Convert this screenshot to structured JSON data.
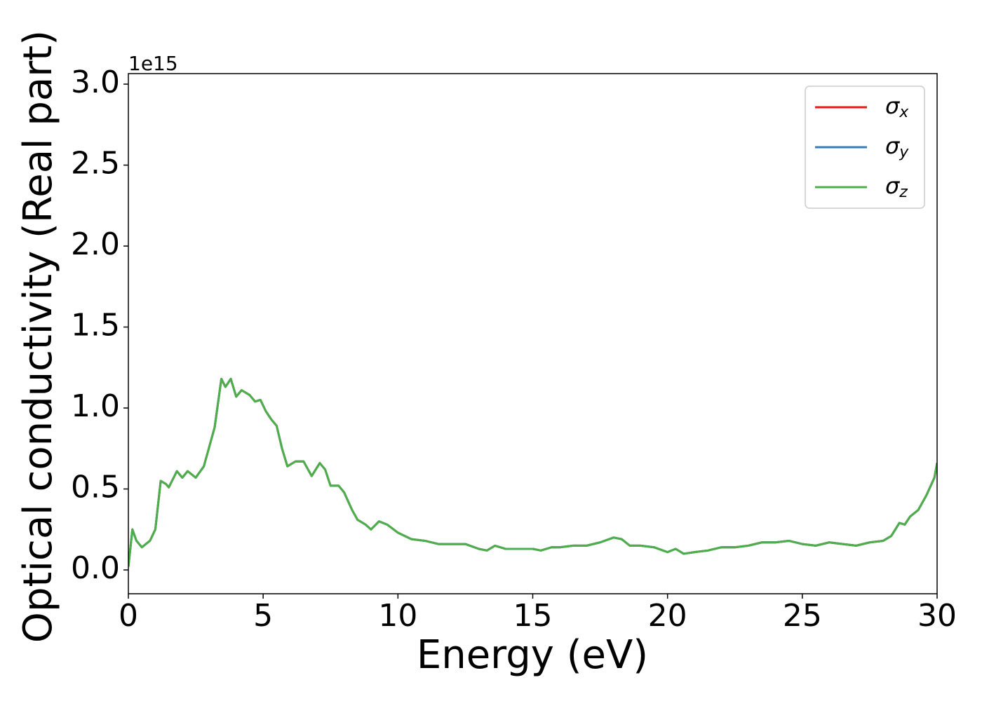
{
  "chart_data": {
    "type": "line",
    "xlabel": "Energy (eV)",
    "ylabel": "Optical conductivity (Real part)",
    "y_offset_label": "1e15",
    "x": [
      0,
      0.15,
      0.3,
      0.5,
      0.8,
      1.0,
      1.2,
      1.4,
      1.5,
      1.8,
      2.0,
      2.2,
      2.5,
      2.8,
      3.0,
      3.2,
      3.45,
      3.6,
      3.8,
      4.0,
      4.2,
      4.5,
      4.7,
      4.9,
      5.1,
      5.3,
      5.5,
      5.7,
      5.9,
      6.2,
      6.5,
      6.8,
      7.1,
      7.3,
      7.5,
      7.8,
      8.0,
      8.3,
      8.5,
      8.8,
      9.0,
      9.3,
      9.6,
      10.0,
      10.5,
      11.0,
      11.5,
      12.0,
      12.5,
      13.0,
      13.3,
      13.6,
      14.0,
      14.5,
      15.0,
      15.3,
      15.7,
      16.0,
      16.5,
      17.0,
      17.5,
      18.0,
      18.3,
      18.6,
      19.0,
      19.5,
      20.0,
      20.3,
      20.6,
      21.0,
      21.5,
      22.0,
      22.5,
      23.0,
      23.5,
      24.0,
      24.5,
      25.0,
      25.5,
      26.0,
      26.5,
      27.0,
      27.5,
      28.0,
      28.3,
      28.6,
      28.8,
      29.0,
      29.3,
      29.6,
      29.9,
      30.0
    ],
    "series": [
      {
        "name": "σx",
        "color": "#e41a1c",
        "values": [
          0.02,
          0.25,
          0.18,
          0.14,
          0.18,
          0.25,
          0.55,
          0.53,
          0.51,
          0.61,
          0.57,
          0.61,
          0.57,
          0.64,
          0.76,
          0.88,
          1.18,
          1.13,
          1.18,
          1.07,
          1.11,
          1.08,
          1.04,
          1.05,
          0.98,
          0.93,
          0.89,
          0.75,
          0.64,
          0.67,
          0.67,
          0.58,
          0.66,
          0.62,
          0.52,
          0.52,
          0.48,
          0.37,
          0.31,
          0.28,
          0.25,
          0.3,
          0.28,
          0.23,
          0.19,
          0.18,
          0.16,
          0.16,
          0.16,
          0.13,
          0.12,
          0.15,
          0.13,
          0.13,
          0.13,
          0.12,
          0.14,
          0.14,
          0.15,
          0.15,
          0.17,
          0.2,
          0.19,
          0.15,
          0.15,
          0.14,
          0.11,
          0.13,
          0.1,
          0.11,
          0.12,
          0.14,
          0.14,
          0.15,
          0.17,
          0.17,
          0.18,
          0.16,
          0.15,
          0.17,
          0.16,
          0.15,
          0.17,
          0.18,
          0.21,
          0.29,
          0.28,
          0.33,
          0.37,
          0.46,
          0.57,
          0.66
        ]
      },
      {
        "name": "σy",
        "color": "#377eb8",
        "values": [
          0.02,
          0.25,
          0.18,
          0.14,
          0.18,
          0.25,
          0.55,
          0.53,
          0.51,
          0.61,
          0.57,
          0.61,
          0.57,
          0.64,
          0.76,
          0.88,
          1.18,
          1.13,
          1.18,
          1.07,
          1.11,
          1.08,
          1.04,
          1.05,
          0.98,
          0.93,
          0.89,
          0.75,
          0.64,
          0.67,
          0.67,
          0.58,
          0.66,
          0.62,
          0.52,
          0.52,
          0.48,
          0.37,
          0.31,
          0.28,
          0.25,
          0.3,
          0.28,
          0.23,
          0.19,
          0.18,
          0.16,
          0.16,
          0.16,
          0.13,
          0.12,
          0.15,
          0.13,
          0.13,
          0.13,
          0.12,
          0.14,
          0.14,
          0.15,
          0.15,
          0.17,
          0.2,
          0.19,
          0.15,
          0.15,
          0.14,
          0.11,
          0.13,
          0.1,
          0.11,
          0.12,
          0.14,
          0.14,
          0.15,
          0.17,
          0.17,
          0.18,
          0.16,
          0.15,
          0.17,
          0.16,
          0.15,
          0.17,
          0.18,
          0.21,
          0.29,
          0.28,
          0.33,
          0.37,
          0.46,
          0.57,
          0.66
        ]
      },
      {
        "name": "σz",
        "color": "#4daf4a",
        "values": [
          0.02,
          0.25,
          0.18,
          0.14,
          0.18,
          0.25,
          0.55,
          0.53,
          0.51,
          0.61,
          0.57,
          0.61,
          0.57,
          0.64,
          0.76,
          0.88,
          1.18,
          1.13,
          1.18,
          1.07,
          1.11,
          1.08,
          1.04,
          1.05,
          0.98,
          0.93,
          0.89,
          0.75,
          0.64,
          0.67,
          0.67,
          0.58,
          0.66,
          0.62,
          0.52,
          0.52,
          0.48,
          0.37,
          0.31,
          0.28,
          0.25,
          0.3,
          0.28,
          0.23,
          0.19,
          0.18,
          0.16,
          0.16,
          0.16,
          0.13,
          0.12,
          0.15,
          0.13,
          0.13,
          0.13,
          0.12,
          0.14,
          0.14,
          0.15,
          0.15,
          0.17,
          0.2,
          0.19,
          0.15,
          0.15,
          0.14,
          0.11,
          0.13,
          0.1,
          0.11,
          0.12,
          0.14,
          0.14,
          0.15,
          0.17,
          0.17,
          0.18,
          0.16,
          0.15,
          0.17,
          0.16,
          0.15,
          0.17,
          0.18,
          0.21,
          0.29,
          0.28,
          0.33,
          0.37,
          0.46,
          0.57,
          0.66
        ]
      }
    ],
    "xlim": [
      0,
      30
    ],
    "xticks": [
      0,
      5,
      10,
      15,
      20,
      25,
      30
    ],
    "ylim": [
      -0.147,
      3.065
    ],
    "yticks": [
      {
        "value": 0,
        "label": "0.0"
      },
      0.5,
      {
        "value": 1,
        "label": "1.0"
      },
      1.5,
      {
        "value": 2,
        "label": "2.0"
      },
      2.5,
      {
        "value": 3,
        "label": "3.0"
      }
    ],
    "grid": false,
    "legend": "upper right"
  }
}
